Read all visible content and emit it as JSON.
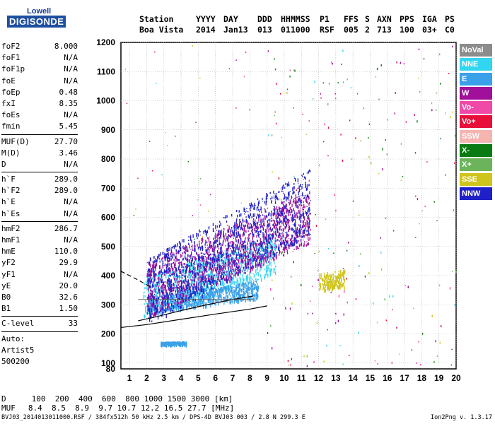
{
  "logo": {
    "top": "Lowell",
    "bottom": "DIGISONDE"
  },
  "header": {
    "row1": [
      "Station",
      "YYYY",
      "DAY",
      "DDD",
      "HHMMSS",
      "P1",
      "FFS",
      "S",
      "AXN",
      "PPS",
      "IGA",
      "PS"
    ],
    "row2": [
      "Boa Vista",
      "2014",
      "Jan13",
      "013",
      "011000",
      "RSF",
      "005",
      "2",
      "713",
      "100",
      "03+",
      "C0"
    ]
  },
  "params": [
    {
      "name": "foF2",
      "value": "8.000"
    },
    {
      "name": "foF1",
      "value": "N/A"
    },
    {
      "name": "foF1p",
      "value": "N/A"
    },
    {
      "name": "foE",
      "value": "N/A"
    },
    {
      "name": "foEp",
      "value": "0.48"
    },
    {
      "name": "fxI",
      "value": "8.35"
    },
    {
      "name": "foEs",
      "value": "N/A"
    },
    {
      "name": "fmin",
      "value": "5.45"
    },
    {
      "sep": true
    },
    {
      "name": "MUF(D)",
      "value": "27.70"
    },
    {
      "name": "M(D)",
      "value": "3.46"
    },
    {
      "name": "D",
      "value": "N/A"
    },
    {
      "sep": true
    },
    {
      "name": "h`F",
      "value": "289.0"
    },
    {
      "name": "h`F2",
      "value": "289.0"
    },
    {
      "name": "h`E",
      "value": "N/A"
    },
    {
      "name": "h`Es",
      "value": "N/A"
    },
    {
      "sep": true
    },
    {
      "name": "hmF2",
      "value": "286.7"
    },
    {
      "name": "hmF1",
      "value": "N/A"
    },
    {
      "name": "hmE",
      "value": "110.0"
    },
    {
      "name": "yF2",
      "value": "29.9"
    },
    {
      "name": "yF1",
      "value": "N/A"
    },
    {
      "name": "yE",
      "value": "20.0"
    },
    {
      "name": "B0",
      "value": "32.6"
    },
    {
      "name": "B1",
      "value": "1.50"
    },
    {
      "sep": true
    },
    {
      "name": "C-level",
      "value": "33"
    },
    {
      "sep": true
    },
    {
      "name": "Auto:",
      "value": ""
    },
    {
      "name": "Artist5",
      "value": ""
    },
    {
      "name": "500200",
      "value": ""
    }
  ],
  "bottom": {
    "d_label": "D",
    "d_values": "100  200  400  600  800 1000 1500 3000 [km]",
    "muf_label": "MUF",
    "muf_values": "8.4  8.5  8.9  9.7 10.7 12.2 16.5 27.7 [MHz]"
  },
  "footer": "BVJ03_2014013011000.RSF / 384fx512h 50 kHz 2.5 km / DPS-4D BVJ03 003 / 2.8 N 299.3 E",
  "version": "Ion2Png v. 1.3.17",
  "legend": [
    {
      "label": "NoVal",
      "color": "#8c8c8c"
    },
    {
      "label": "NNE",
      "color": "#33d6f0"
    },
    {
      "label": "E",
      "color": "#3aa0ea"
    },
    {
      "label": "W",
      "color": "#a0109a"
    },
    {
      "label": "Vo-",
      "color": "#f04aa8"
    },
    {
      "label": "Vo+",
      "color": "#e8103a"
    },
    {
      "label": "SSW",
      "color": "#f4b4b0"
    },
    {
      "label": "X-",
      "color": "#0a7a12"
    },
    {
      "label": "X+",
      "color": "#6cb45c"
    },
    {
      "label": "SSE",
      "color": "#cfc41c"
    },
    {
      "label": "NNW",
      "color": "#2020c8"
    }
  ],
  "chart_data": {
    "type": "scatter",
    "title": "",
    "xlabel": "",
    "ylabel": "",
    "xlim": [
      0.5,
      20
    ],
    "ylim": [
      80,
      1200
    ],
    "x_ticks": [
      1,
      2,
      3,
      4,
      5,
      6,
      7,
      8,
      9,
      10,
      11,
      12,
      13,
      14,
      15,
      16,
      17,
      18,
      19,
      20
    ],
    "y_ticks": [
      80,
      100,
      200,
      300,
      400,
      500,
      600,
      700,
      800,
      900,
      1000,
      1100,
      1200
    ],
    "grid": true,
    "legend_position": "right",
    "traces": [
      {
        "name": "profile-lower",
        "x": [
          0.5,
          2,
          4,
          6,
          8,
          9
        ],
        "y": [
          222,
          232,
          250,
          268,
          285,
          296
        ]
      },
      {
        "name": "profile-upper",
        "x": [
          1.5,
          2.5,
          4,
          5.5,
          7,
          8.2
        ],
        "y": [
          245,
          258,
          280,
          300,
          318,
          330
        ]
      },
      {
        "name": "profile-dashed",
        "x": [
          0.5,
          1.5,
          2.3
        ],
        "y": [
          415,
          385,
          358
        ]
      },
      {
        "name": "trace-lines",
        "x": [
          1.5,
          8.2
        ],
        "y": [
          318,
          318
        ]
      }
    ],
    "echo_regions": [
      {
        "name": "NNE",
        "x_range": [
          1.8,
          9.5
        ],
        "y_range": [
          260,
          420
        ]
      },
      {
        "name": "E",
        "x_range": [
          2,
          8.5
        ],
        "y_range": [
          270,
          340
        ]
      },
      {
        "name": "W",
        "x_range": [
          2,
          11.5
        ],
        "y_range": [
          260,
          480
        ]
      },
      {
        "name": "NNW",
        "x_range": [
          2,
          11.5
        ],
        "y_range": [
          230,
          500
        ]
      },
      {
        "name": "SSE",
        "x_range": [
          12,
          13.5
        ],
        "y_range": [
          350,
          420
        ]
      },
      {
        "name": "E",
        "x_range": [
          2.8,
          4.3
        ],
        "y_range": [
          165,
          175
        ]
      }
    ]
  }
}
